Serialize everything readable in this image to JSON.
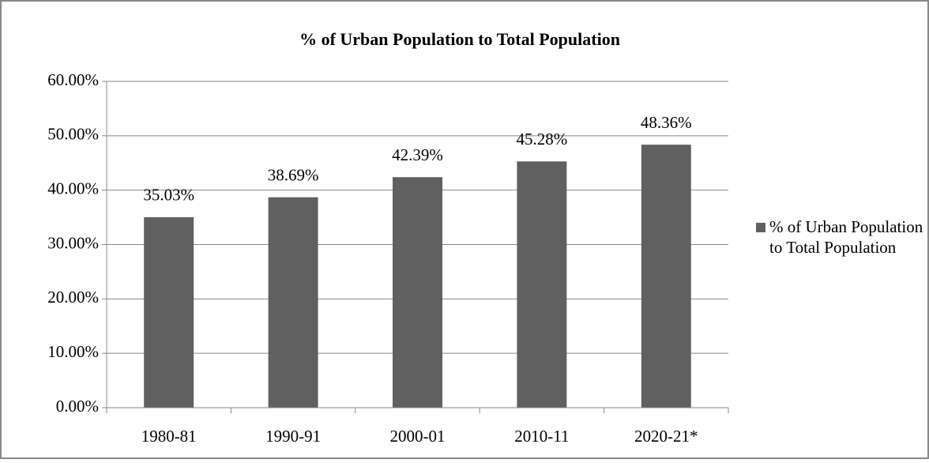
{
  "chart_data": {
    "type": "bar",
    "title": "% of Urban Population to Total Population",
    "categories": [
      "1980-81",
      "1990-91",
      "2000-01",
      "2010-11",
      "2020-21*"
    ],
    "series": [
      {
        "name": "% of Urban Population to Total Population",
        "color": "#606060",
        "values": [
          35.03,
          38.69,
          42.39,
          45.28,
          48.36
        ],
        "value_labels": [
          "35.03%",
          "38.69%",
          "42.39%",
          "45.28%",
          "48.36%"
        ]
      }
    ],
    "ylim": [
      0,
      60
    ],
    "yticks": [
      {
        "value": 0,
        "label": "0.00%"
      },
      {
        "value": 10,
        "label": "10.00%"
      },
      {
        "value": 20,
        "label": "20.00%"
      },
      {
        "value": 30,
        "label": "30.00%"
      },
      {
        "value": 40,
        "label": "40.00%"
      },
      {
        "value": 50,
        "label": "50.00%"
      },
      {
        "value": 60,
        "label": "60.00%"
      }
    ],
    "grid": true,
    "legend": "right"
  }
}
